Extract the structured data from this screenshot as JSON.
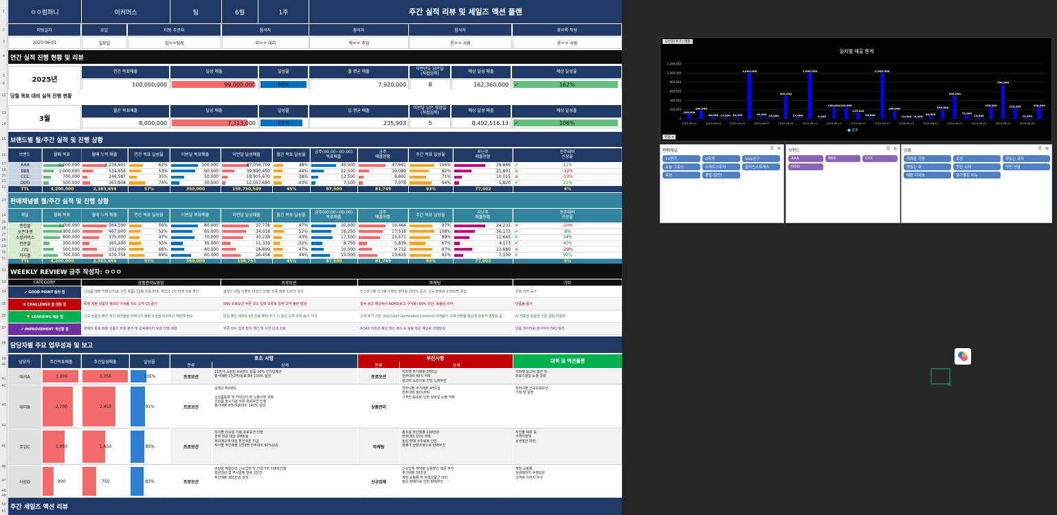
{
  "header": {
    "company": "ㅇㅇ컴퍼니",
    "channel": "이커머스",
    "team": "팀",
    "month": "6월",
    "week": "1주",
    "title": "주간 실적 리뷰 및 세일즈 액션 플랜"
  },
  "meta": {
    "labels": [
      "미팅일자",
      "요일",
      "미팅 주관자",
      "참석자",
      "참석자",
      "참석자",
      "회의록 작성"
    ],
    "values": [
      "2025-06-01",
      "일요일",
      "김ㅇㅇ팀장",
      "이ㅇㅇ 대리",
      "박ㅇㅇ 주임",
      "윤ㅇㅇ 사원",
      "윤ㅇㅇ 사원"
    ]
  },
  "annual": {
    "section": "연간 실적 진행 현황 및 리뷰",
    "year": "2025년",
    "labels": [
      "연간 목표매출",
      "달성 매출",
      "달성율",
      "월 평균 매출",
      "이번년도 남은달\n(직접입력)",
      "예상 달성 매출",
      "예상 달성율"
    ],
    "values": [
      "100,000,000",
      "99,000,000",
      "99%",
      "7,920,000",
      "8",
      "162,360,000",
      "162%"
    ],
    "fills": {
      "achieved": 0.99,
      "rate": 0.99,
      "forecast_rate": 1.62
    }
  },
  "monthly": {
    "section": "당월 목표 대비 실적 진행 현황",
    "month": "3월",
    "labels": [
      "월간 목표매출",
      "달성 매출",
      "달성율",
      "일 평균 매출",
      "이번달 남은 영업일\n(직접입력)",
      "예상 달성 매출",
      "예상 달성율"
    ],
    "values": [
      "8,000,000",
      "7,313,000",
      "91%",
      "235,903",
      "5",
      "8,492,516.13",
      "106%"
    ],
    "fills": {
      "achieved": 0.91,
      "rate": 0.91,
      "forecast_rate": 1.06
    }
  },
  "brand_table": {
    "section": "브랜드별 월/주간 실적 및 진행 상황",
    "headers": [
      "브랜드",
      "월매 목표",
      "월매 누적 매출",
      "연간 목표 달성율",
      "이번달 목표매출",
      "이번달 달성매출",
      "월간 목표 달성율",
      "금주(00.00~00.00)\n목표매출",
      "금주\n매출현황",
      "주간 목표 달성율",
      "지난주\n매출현황",
      "전주대비\n신장율"
    ],
    "rows": [
      [
        "AAA",
        "2,000,000",
        "1,234,601",
        "62%",
        "100,000",
        "87,056,709",
        "48%",
        "45,000",
        "47,681",
        "106%",
        "39,866",
        "21%"
      ],
      [
        "BBB",
        "1,000,000",
        "534,658",
        "53%",
        "90,000",
        "39,890,450",
        "44%",
        "22,500",
        "19,089",
        "82%",
        "21,801",
        "-12%"
      ],
      [
        "CCC",
        "700,000",
        "246,587",
        "35%",
        "50,000",
        "18,905,670",
        "38%",
        "12,500",
        "8,891",
        "71%",
        "10,015",
        "-11%"
      ],
      [
        "DDD",
        "500,000",
        "367,808",
        "74%",
        "30,000",
        "12,057,680",
        "43%",
        "7,500",
        "7,078",
        "94%",
        "5,820",
        "22%"
      ]
    ],
    "total": [
      "TTL",
      "4,200,000",
      "2,383,654",
      "57%",
      "350,000",
      "158,750,509",
      "45%",
      "87,500",
      "81,749",
      "93%",
      "77,002",
      "6%"
    ]
  },
  "channel_table": {
    "section": "판매채널별 월/주간 실적 및 진행 상황",
    "headers": [
      "채널",
      "월매 목표",
      "월매 누적 매출",
      "연간 목표 달성율",
      "이번달 목표매출",
      "이번달 달성매출",
      "월간 목표 달성율",
      "금주(00.00~00.00)\n목표매출",
      "금주\n매출현황",
      "주간 목표 달성율",
      "지난주\n매출현황",
      "전주대비\n신장율"
    ],
    "rows": [
      [
        "종합몰",
        "1,000,000",
        "564,500",
        "56%",
        "80,000",
        "37,738",
        "47%",
        "20,000",
        "19,464",
        "97%",
        "24,231",
        "-20%"
      ],
      [
        "오픈마켓",
        "900,000",
        "467,000",
        "52%",
        "65,000",
        "34,018",
        "52%",
        "16,250",
        "17,518",
        "108%",
        "16,173",
        "8%"
      ],
      [
        "소셜커머스",
        "800,000",
        "375,000",
        "47%",
        "70,000",
        "30,238",
        "43%",
        "17,500",
        "15,571",
        "89%",
        "11,645",
        "34%"
      ],
      [
        "전문몰",
        "300,000",
        "165,400",
        "55%",
        "35,000",
        "11,339",
        "32%",
        "8,750",
        "5,839",
        "67%",
        "4,173",
        "40%"
      ],
      [
        "기타",
        "500,000",
        "332,000",
        "66%",
        "40,000",
        "18,899",
        "47%",
        "10,000",
        "9,732",
        "97%",
        "13,680",
        "-29%"
      ],
      [
        "자사몰",
        "700,000",
        "479,754",
        "69%",
        "60,000",
        "26,458",
        "44%",
        "15,000",
        "13,625",
        "91%",
        "7,100",
        "92%"
      ]
    ],
    "total": [
      "TTL",
      "4,200,000",
      "2,383,654",
      "57%",
      "350,000",
      "158,751",
      "45%",
      "87,500",
      "81,749",
      "93%",
      "77,002",
      "6%"
    ]
  },
  "weekly": {
    "title": "WEEKLY REVIEW  금주 작성자: ㅇㅇㅇ",
    "headers": [
      "CATEGORY",
      "상품관리&영업",
      "프로모션",
      "마케팅",
      "기타"
    ],
    "rows": [
      {
        "label": "✔ GOOD POINT 잘한 점",
        "cells": [
          "신상품 매출 카테고리(봄 시즌 제품) 15종 초동 판매, 재입고 1차 판매 완료 확인",
          "봄맞이 세일 이벤트 (3일간 진행) 최종 매출 120% 달성",
          "인스타그램 리그램 이벤트 참여율 150% 증가, 신규 팔로워 2,000명 유입",
          "긍정 리뷰 증가"
        ]
      },
      {
        "label": "✖ CHALLENGE 잘 안된 점",
        "cells": [
          "특정 저평 상품의 퀄리티 아쉬움 지속 고객 CS 증가",
          "SNS 프로모션 쿠폰 코드 입력 오류로 일부 고객 불만 발생",
          "일부 광고 채널에서 ROAS(광고 수익률) 80% 미만, 효율성 저하",
          "반품율 증가"
        ]
      },
      {
        "label": "💡 LEARNING 배운 점",
        "cells": [
          "신규 상품의 빠른 재고 회전율을 위해 1차 물량 수급을 미리하고 재판매 필요",
          "반응 좋은 레퍼토 VP 전용 혜택 추가 시 충성 고객 유지 효과 기대",
          "고객 후기 기반 UGC(User Generated Content) 마케팅이 구매 전환율 향상에 긍정적 영향을 줌",
          "AI 챗봇을 활용한 기존 상담 자동화"
        ]
      },
      {
        "label": "✐ IMPROVEMENT 개선할 점",
        "cells": [
          "판매처 활용 매출 상품의 트렌 분석 및 상세페이지 보완 진행 예정",
          "쿠폰 코드 입력 방식 개선 및 사전 안내 강화",
          "ROAS 저조한 채널 예산 축소 & 효율 높은 채널로 리밸런싱",
          "반품 데이터를 분석하여 FAQ 정리"
        ]
      }
    ]
  },
  "staff": {
    "section": "담당자별 주요 업무성과 및 보고",
    "headers": [
      "담당자",
      "주간목표매출",
      "주간달성매출",
      "달성율"
    ],
    "good_header": "호조 사항",
    "bad_header": "부진사항",
    "action_header": "대책 및 액션플랜",
    "sub": [
      "분류",
      "상세",
      "분류",
      "상세"
    ],
    "rows": [
      {
        "name": "대리A",
        "target": "3,200",
        "actual": "3,356",
        "rate": "105%",
        "rate_v": 1.05,
        "gcat": "프로모션",
        "gdet": "11번가 쇼킹딜 A브랜드 상품 20% 인가딜제안\n행사매출 1천2백/목표대비 130% 달성",
        "bcat": "프로모션",
        "bdet": "지마켓 추가매출 5백5십\n전주대비 40% 하락\n광고비 소진으로 인한 노출부진",
        "act": "지마켓 광고비 충전 및\n프로스윙딜 노출 강화"
      },
      {
        "name": "대리B",
        "target": "2,700",
        "actual": "2,453",
        "rate": "91%",
        "rate_v": 0.91,
        "gcat": "프로모션",
        "gdet": "오레곤 B브랜드\n\n신상품등록 및 카테고리 취 노출구좌 강화\n신상품 출시기념 쿠폰 프로모션 진행\n행사매출 8백/목표대비 140% 달성",
        "bcat": "상품관리",
        "bdet": "천마녀몰 추가매출 4백2십\n전주대비 30%하락\n가격전 동조로 인한 모바일 노출 약화",
        "act": "천마녀몰 신규프로모션\n기획 및 실행"
      },
      {
        "name": "주임C",
        "target": "1,950",
        "actual": "1,650",
        "rate": "85%",
        "rate_v": 0.85,
        "gcat": "프로모션",
        "gdet": "자사몰 리뉴얼 기념 프로모션 진행\n전체 회원 대상 DM발송\n재구매고객 대상 할인쿠폰 지급\n자사몰 주간매출 1천3백 전주대비 92%상승",
        "bcat": "마케팅",
        "bdet": "홈쇼핑 주간매출 100만원\n전주대비 15% 하락\n높은 판매 수수료로 인한\n판매가 상향조정으로 판매부진",
        "act": "자진몰 체류 등\n가격지정책\n상생방안 마련"
      },
      {
        "name": "사원D",
        "target": "900",
        "actual": "750",
        "rate": "83%",
        "rate_v": 0.83,
        "gcat": "프로모션",
        "gdet": "쿠팡을 체험단과 신규업체 및 인형거부 이벤트진행\n회원대상 앱 푸시알림 발송 2천건\n주간매출 300만원 달성",
        "bcat": "신규업체",
        "bdet": "신규업체 계약을 실용할인 때문 부진\n추가매출 30만원\n재방 쇼핑몰 취 정형상품군 대비\n높은 판매가로 인한 판매부진",
        "act": "재방 쇼핑몰\n상세페이지 수정보완\n고객화 이어지 추구"
      }
    ]
  },
  "footer_section": "주간 세일즈 액션 리뷰",
  "row_numbers": [
    "1",
    "2",
    "3",
    "4",
    "5",
    "6",
    "12",
    "13",
    "14",
    "15",
    "16",
    "17",
    "18",
    "20",
    "21",
    "22",
    "23",
    "24",
    "25",
    "26",
    "27",
    "28",
    "29",
    "30",
    "31",
    "32",
    "33",
    "34",
    "35",
    "36",
    "37",
    "38",
    "39",
    "40",
    "41",
    "42",
    "43",
    "44",
    "45",
    "46",
    "47",
    "48",
    "49",
    "50",
    "51",
    "52",
    "53"
  ],
  "chart_tab": "사진원(추가) 매출",
  "chart_button": "반응 ▾",
  "chart_data": {
    "type": "bar",
    "title": "일자별 매출 통계",
    "legend": "■ 합계",
    "ylim": [
      0,
      1200000
    ],
    "y_ticks": [
      "0",
      "200,000",
      "400,000",
      "600,000",
      "800,000",
      "1,000,000",
      "1,200,000"
    ],
    "categories": [
      "2025-06-01",
      "2025-06-02",
      "2025-06-03",
      "2025-06-04",
      "2025-06-05",
      "2025-06-06",
      "2025-06-07",
      "2025-06-08",
      "2025-06-09",
      "2025-06-10",
      "2025-06-11",
      "2025-06-12",
      "2025-06-13",
      "2025-06-14",
      "2025-06-15",
      "2025-06-16",
      "2025-06-17",
      "2025-06-18",
      "2025-06-19",
      "2025-06-20",
      "2025-06-21",
      "2025-06-22",
      "2025-06-23",
      "2025-06-24",
      "2025-06-25",
      "2025-06-26",
      "2025-06-27",
      "2025-06-28",
      "2025-06-29",
      "2025-06-30"
    ],
    "x_tick_labels": [
      "2025-06-01",
      "2025-06-03",
      "2025-06-05",
      "2025-06-07",
      "2025-06-09",
      "2025-06-11",
      "2025-06-13",
      "2025-06-15",
      "2025-06-17",
      "2025-06-19",
      "2025-06-21",
      "2025-06-23",
      "2025-06-25",
      "2025-06-27",
      "2025-06-29"
    ],
    "values": [
      100000,
      180000,
      40000,
      27000,
      40000,
      1000000,
      50000,
      24000,
      500000,
      27000,
      1000000,
      9000,
      250000,
      250000,
      125000,
      34000,
      1000000,
      180000,
      10000,
      8000,
      50000,
      200000,
      500000,
      75000,
      24000,
      250000,
      750000,
      225000,
      12000,
      250000
    ],
    "data_labels": [
      "100,000",
      "180,000",
      "40,000",
      "27,000",
      "40,000",
      "1,000,000",
      "50,000",
      "24,000",
      "500,000",
      "27,000",
      "1,000,000",
      "9,000",
      "250,000",
      "250,000",
      "125,000",
      "34,000",
      "1,000,000",
      "180,000",
      "10,000",
      "8,000",
      "50,000",
      "200,000",
      "500,000",
      "75,000",
      "24,000",
      "250,000",
      "750,000",
      "225,000",
      "12,000",
      "250,000"
    ],
    "color": "#0000ff"
  },
  "slicers": {
    "channel": {
      "title": "판매채널",
      "items": [
        "11번가",
        "G마켓",
        "SSG공구",
        "오늘 그로스",
        "스마트스토어",
        "갈리빈스트래스",
        "옥션",
        "종합(일반)"
      ]
    },
    "brand": {
      "title": "브랜드",
      "items": [
        "AAA",
        "BBB",
        "CCC",
        "DDD"
      ]
    },
    "product": {
      "title": "상품",
      "items": [
        "귀여운 가방",
        "로션",
        "멋있는 과자",
        "멋있는 차",
        "멋진 시계",
        "멋진 신발",
        "예쁜 티셔츠",
        "향기좋은 비누"
      ]
    }
  }
}
